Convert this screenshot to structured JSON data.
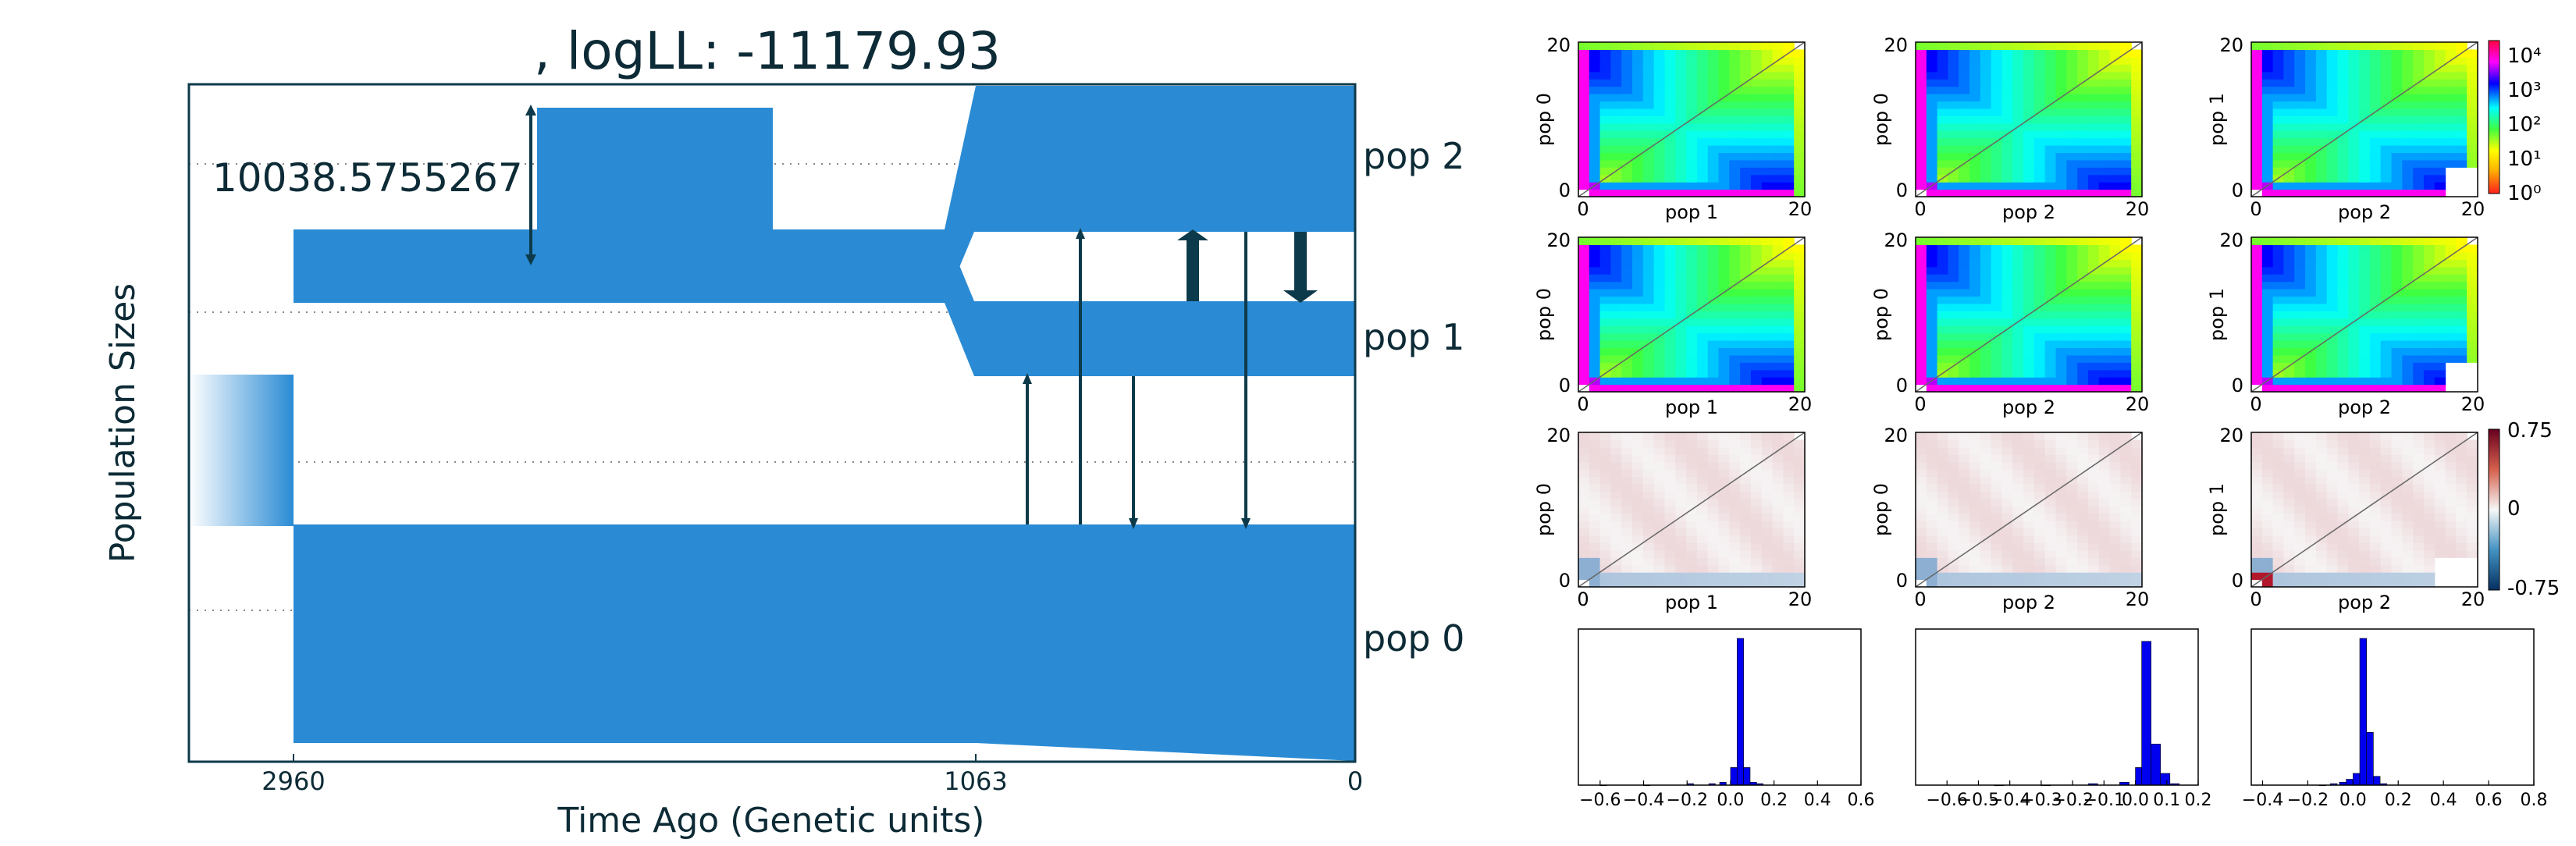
{
  "colors": {
    "pop_fill": "#2a8bd4",
    "arrow": "#0d3a4a",
    "frame": "#0d3a4a",
    "text": "#0d2b36",
    "hist_bar": "#0000ee"
  },
  "chart_data": [
    {
      "type": "area",
      "title": ", logLL:  -11179.93",
      "xlabel": "Time Ago (Genetic units)",
      "ylabel": "Population Sizes",
      "x_ticks": [
        "2960",
        "1063",
        "0"
      ],
      "annotation": "10038.5755267",
      "series": [
        {
          "name": "pop 0"
        },
        {
          "name": "pop 1"
        },
        {
          "name": "pop 2"
        }
      ]
    },
    {
      "type": "heatmap",
      "panels": [
        {
          "xlabel": "pop 1",
          "ylabel": "pop 0",
          "xticks": [
            "0",
            "20"
          ],
          "yticks": [
            "0",
            "20"
          ]
        },
        {
          "xlabel": "pop 2",
          "ylabel": "pop 0",
          "xticks": [
            "0",
            "20"
          ],
          "yticks": [
            "0",
            "20"
          ]
        },
        {
          "xlabel": "pop 2",
          "ylabel": "pop 1",
          "xticks": [
            "0",
            "20"
          ],
          "yticks": [
            "0",
            "20"
          ]
        },
        {
          "xlabel": "pop 1",
          "ylabel": "pop 0",
          "xticks": [
            "0",
            "20"
          ],
          "yticks": [
            "0",
            "20"
          ]
        },
        {
          "xlabel": "pop 2",
          "ylabel": "pop 0",
          "xticks": [
            "0",
            "20"
          ],
          "yticks": [
            "0",
            "20"
          ]
        },
        {
          "xlabel": "pop 2",
          "ylabel": "pop 1",
          "xticks": [
            "0",
            "20"
          ],
          "yticks": [
            "0",
            "20"
          ]
        },
        {
          "xlabel": "pop 1",
          "ylabel": "pop 0",
          "xticks": [
            "0",
            "20"
          ],
          "yticks": [
            "0",
            "20"
          ]
        },
        {
          "xlabel": "pop 2",
          "ylabel": "pop 0",
          "xticks": [
            "0",
            "20"
          ],
          "yticks": [
            "0",
            "20"
          ]
        },
        {
          "xlabel": "pop 2",
          "ylabel": "pop 1",
          "xticks": [
            "0",
            "20"
          ],
          "yticks": [
            "0",
            "20"
          ]
        }
      ],
      "colorbar_log": {
        "ticks": [
          "10⁴",
          "10³",
          "10²",
          "10¹",
          "10⁰"
        ]
      },
      "colorbar_resid": {
        "ticks": [
          "0.75",
          "0",
          "-0.75"
        ]
      }
    },
    {
      "type": "bar",
      "histograms": [
        {
          "xticks": [
            "−0.6",
            "−0.4",
            "−0.2",
            "0.0",
            "0.2",
            "0.4",
            "0.6"
          ],
          "xlim": [
            -0.7,
            0.6
          ],
          "bins": [
            [
              -0.6,
              0.0
            ],
            [
              -0.4,
              0.0
            ],
            [
              -0.2,
              0.01
            ],
            [
              -0.1,
              0.01
            ],
            [
              -0.05,
              0.02
            ],
            [
              0.0,
              0.12
            ],
            [
              0.03,
              1.0
            ],
            [
              0.06,
              0.12
            ],
            [
              0.09,
              0.02
            ],
            [
              0.12,
              0.01
            ]
          ]
        },
        {
          "xticks": [
            "−0.6",
            "−0.5",
            "−0.4",
            "−0.3",
            "−0.2",
            "−0.1",
            "0.0",
            "0.1",
            "0.2"
          ],
          "xlim": [
            -0.7,
            0.2
          ],
          "bins": [
            [
              -0.45,
              0.0
            ],
            [
              -0.3,
              0.0
            ],
            [
              -0.15,
              0.01
            ],
            [
              -0.05,
              0.02
            ],
            [
              0.0,
              0.12
            ],
            [
              0.02,
              0.98
            ],
            [
              0.05,
              0.28
            ],
            [
              0.08,
              0.08
            ],
            [
              0.11,
              0.01
            ]
          ]
        },
        {
          "xticks": [
            "−0.4",
            "−0.2",
            "0.0",
            "0.2",
            "0.4",
            "0.6",
            "0.8"
          ],
          "xlim": [
            -0.45,
            0.8
          ],
          "bins": [
            [
              -0.15,
              0.0
            ],
            [
              -0.1,
              0.01
            ],
            [
              -0.06,
              0.02
            ],
            [
              -0.03,
              0.04
            ],
            [
              0.0,
              0.08
            ],
            [
              0.03,
              1.0
            ],
            [
              0.06,
              0.36
            ],
            [
              0.09,
              0.06
            ],
            [
              0.12,
              0.01
            ]
          ]
        }
      ]
    }
  ]
}
